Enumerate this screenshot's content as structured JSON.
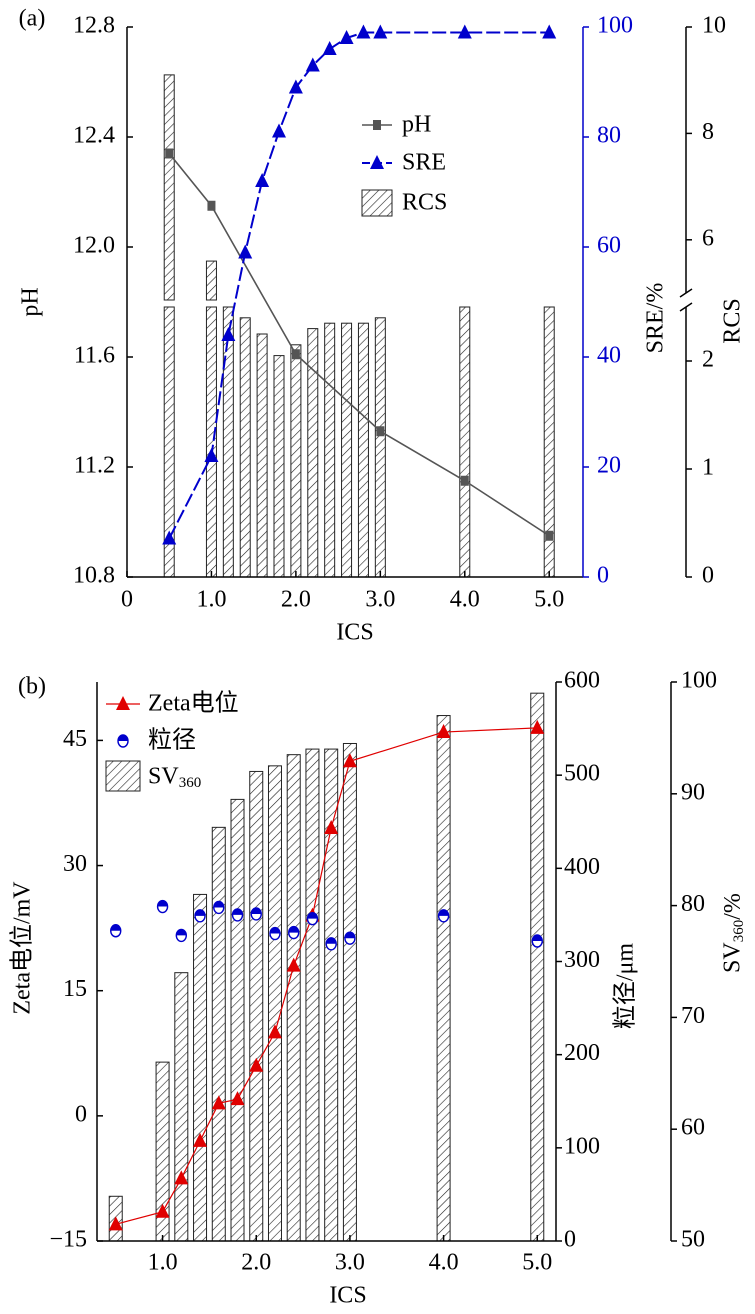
{
  "chart_data": [
    {
      "panel": "(a)",
      "type": "bar",
      "xlabel": "ICS",
      "xlim": [
        0,
        5.4
      ],
      "xticks": [
        "0",
        "1.0",
        "2.0",
        "3.0",
        "4.0",
        "5.0"
      ],
      "x": [
        0.5,
        1.0,
        1.2,
        1.4,
        1.6,
        1.8,
        2.0,
        2.2,
        2.4,
        2.6,
        2.8,
        3.0,
        4.0,
        5.0
      ],
      "axes": {
        "left": {
          "label": "pH",
          "lim": [
            10.8,
            12.8
          ],
          "ticks": [
            "10.8",
            "11.2",
            "11.6",
            "12.0",
            "12.4",
            "12.8"
          ]
        },
        "right1": {
          "label": "SRE/%",
          "lim": [
            0,
            100
          ],
          "ticks": [
            "0",
            "20",
            "40",
            "60",
            "80",
            "100"
          ],
          "color": "#0000cc"
        },
        "right2": {
          "label": "RCS",
          "lower_ticks": [
            "0",
            "1",
            "2"
          ],
          "upper_ticks": [
            "6",
            "8",
            "10"
          ],
          "broken": true
        }
      },
      "series": [
        {
          "name": "pH",
          "kind": "line",
          "marker": "square",
          "color": "#555555",
          "axis": "left",
          "x": [
            0.5,
            1.0,
            2.0,
            3.0,
            4.0,
            5.0
          ],
          "values": [
            12.34,
            12.15,
            11.61,
            11.33,
            11.15,
            10.95
          ]
        },
        {
          "name": "SRE",
          "kind": "line",
          "marker": "triangle",
          "dash": true,
          "color": "#0000cc",
          "axis": "right1",
          "x": [
            0.5,
            1.0,
            1.2,
            1.4,
            1.6,
            1.8,
            2.0,
            2.2,
            2.4,
            2.6,
            2.8,
            3.0,
            4.0,
            5.0
          ],
          "values": [
            7,
            22,
            44,
            59,
            72,
            81,
            89,
            93,
            96,
            98,
            99,
            99,
            99,
            99
          ]
        },
        {
          "name": "RCS",
          "kind": "bar",
          "pattern": "hatch",
          "axis": "right2",
          "x": [
            0.5,
            1.0,
            1.2,
            1.4,
            1.6,
            1.8,
            2.0,
            2.2,
            2.4,
            2.6,
            2.8,
            3.0,
            4.0,
            5.0
          ],
          "values": [
            9.1,
            5.6,
            2.8,
            2.4,
            2.25,
            2.05,
            2.15,
            2.3,
            2.35,
            2.35,
            2.35,
            2.4,
            2.5,
            2.65
          ]
        }
      ],
      "legend": "center-right"
    },
    {
      "panel": "(b)",
      "type": "bar",
      "xlabel": "ICS",
      "xlim": [
        0.3,
        5.2
      ],
      "xticks": [
        "1.0",
        "2.0",
        "3.0",
        "4.0",
        "5.0"
      ],
      "x": [
        0.5,
        1.0,
        1.2,
        1.4,
        1.6,
        1.8,
        2.0,
        2.2,
        2.4,
        2.6,
        2.8,
        3.0,
        4.0,
        5.0
      ],
      "axes": {
        "left": {
          "label": "Zeta电位/mV",
          "lim": [
            -15,
            52
          ],
          "ticks": [
            "−15",
            "0",
            "15",
            "30",
            "45"
          ]
        },
        "right1": {
          "label": "粒径/μm",
          "lim": [
            0,
            600
          ],
          "ticks": [
            "0",
            "100",
            "200",
            "300",
            "400",
            "500",
            "600"
          ]
        },
        "right2": {
          "label": "SV",
          "label_sub": "360",
          "label_suffix": "/%",
          "lim": [
            50,
            100
          ],
          "ticks": [
            "50",
            "60",
            "70",
            "80",
            "90",
            "100"
          ]
        }
      },
      "series": [
        {
          "name": "Zeta电位",
          "kind": "line",
          "marker": "triangle",
          "color": "#e00000",
          "axis": "left",
          "x": [
            0.5,
            1.0,
            1.2,
            1.4,
            1.6,
            1.8,
            2.0,
            2.2,
            2.4,
            2.6,
            2.8,
            3.0,
            4.0,
            5.0
          ],
          "values": [
            -13,
            -11.5,
            -7.5,
            -3,
            1.5,
            2,
            6,
            10,
            18,
            24,
            34.5,
            42.5,
            46,
            46.5
          ]
        },
        {
          "name": "粒径",
          "kind": "scatter",
          "marker": "half-circle",
          "color": "#0000cc",
          "axis": "right1",
          "x": [
            0.5,
            1.0,
            1.2,
            1.4,
            1.6,
            1.8,
            2.0,
            2.2,
            2.4,
            2.6,
            2.8,
            3.0,
            4.0,
            5.0
          ],
          "values": [
            333,
            359,
            328,
            349,
            358,
            350,
            351,
            330,
            331,
            346,
            319,
            325,
            349,
            322
          ]
        },
        {
          "name": "SV",
          "name_sub": "360",
          "kind": "bar",
          "pattern": "hatch",
          "axis": "right2",
          "x": [
            0.5,
            1.0,
            1.2,
            1.4,
            1.6,
            1.8,
            2.0,
            2.2,
            2.4,
            2.6,
            2.8,
            3.0,
            4.0,
            5.0
          ],
          "values": [
            54,
            66,
            74,
            81,
            87,
            89.5,
            92,
            92.5,
            93.5,
            94,
            94,
            94.5,
            97,
            99
          ]
        }
      ],
      "legend": "top-left"
    }
  ]
}
